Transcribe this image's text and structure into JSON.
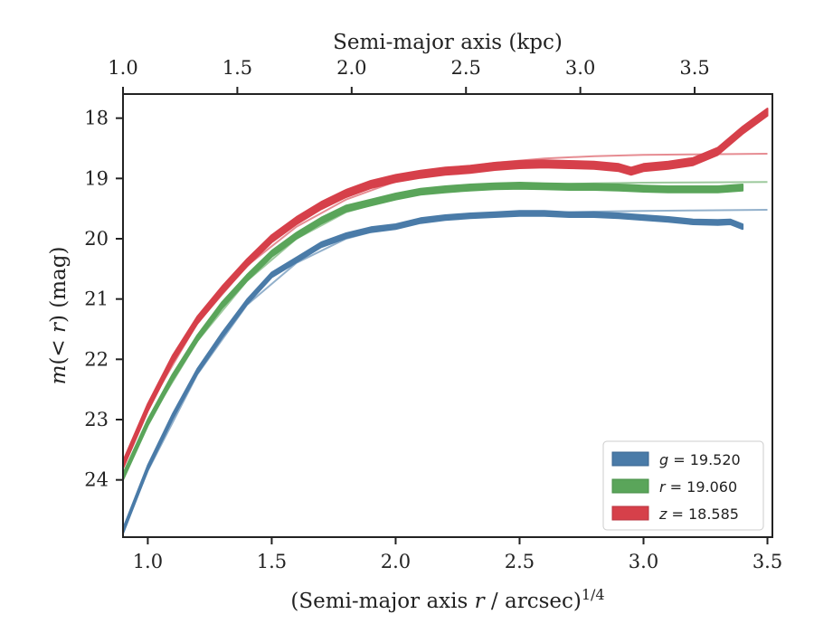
{
  "chart_data": {
    "type": "line",
    "xlabel": "(Semi-major axis r / arcsec)^{1/4}",
    "xlabel_parts": {
      "prefix": "(Semi-major axis ",
      "var": "r",
      "mid": " / arcsec)",
      "sup": "1/4"
    },
    "ylabel": "m(< r) (mag)",
    "ylabel_parts": {
      "var": "m",
      "mid": "(< ",
      "var2": "r",
      "end": ") (mag)"
    },
    "top_xlabel": "Semi-major axis (kpc)",
    "xlim": [
      0.9,
      3.52
    ],
    "ylim": [
      24.95,
      17.6
    ],
    "y_inverted": true,
    "x_ticks": [
      1.0,
      1.5,
      2.0,
      2.5,
      3.0,
      3.5
    ],
    "x_tick_labels": [
      "1.0",
      "1.5",
      "2.0",
      "2.5",
      "3.0",
      "3.5"
    ],
    "y_ticks": [
      18,
      19,
      20,
      21,
      22,
      23,
      24
    ],
    "y_tick_labels": [
      "18",
      "19",
      "20",
      "21",
      "22",
      "23",
      "24"
    ],
    "top_ticks_kpc": [
      1.0,
      1.5,
      2.0,
      2.5,
      3.0,
      3.5
    ],
    "top_tick_labels": [
      "1.0",
      "1.5",
      "2.0",
      "2.5",
      "3.0",
      "3.5"
    ],
    "top_xlim_kpc": [
      1.0,
      3.84
    ],
    "grid": false,
    "legend_position": "lower-right",
    "series": [
      {
        "name": "g = 19.520",
        "legend_var": "g",
        "legend_value": "19.520",
        "color": "#4a7ba8",
        "band_halfwidth": 0.04,
        "x": [
          0.9,
          1.0,
          1.1,
          1.2,
          1.3,
          1.4,
          1.5,
          1.6,
          1.7,
          1.8,
          1.9,
          2.0,
          2.1,
          2.2,
          2.3,
          2.4,
          2.5,
          2.6,
          2.7,
          2.8,
          2.9,
          3.0,
          3.1,
          3.2,
          3.3,
          3.35,
          3.4
        ],
        "y": [
          24.85,
          23.8,
          22.95,
          22.2,
          21.6,
          21.05,
          20.6,
          20.35,
          20.1,
          19.95,
          19.85,
          19.8,
          19.7,
          19.65,
          19.62,
          19.6,
          19.58,
          19.58,
          19.6,
          19.6,
          19.62,
          19.65,
          19.68,
          19.72,
          19.73,
          19.72,
          19.8
        ],
        "model_x": [
          0.9,
          1.0,
          1.2,
          1.4,
          1.6,
          1.8,
          2.0,
          2.2,
          2.4,
          2.6,
          2.8,
          3.0,
          3.2,
          3.5
        ],
        "model_y": [
          24.85,
          23.85,
          22.25,
          21.1,
          20.4,
          20.0,
          19.78,
          19.66,
          19.6,
          19.57,
          19.55,
          19.54,
          19.53,
          19.52
        ]
      },
      {
        "name": "r = 19.060",
        "legend_var": "r",
        "legend_value": "19.060",
        "color": "#5aa55a",
        "band_halfwidth": 0.05,
        "x": [
          0.9,
          1.0,
          1.1,
          1.2,
          1.3,
          1.4,
          1.5,
          1.6,
          1.7,
          1.8,
          1.9,
          2.0,
          2.1,
          2.2,
          2.3,
          2.4,
          2.5,
          2.6,
          2.7,
          2.8,
          2.9,
          3.0,
          3.1,
          3.2,
          3.3,
          3.4
        ],
        "y": [
          23.95,
          23.05,
          22.3,
          21.65,
          21.1,
          20.65,
          20.25,
          19.95,
          19.7,
          19.5,
          19.4,
          19.3,
          19.22,
          19.18,
          19.15,
          19.13,
          19.12,
          19.13,
          19.14,
          19.14,
          19.15,
          19.17,
          19.18,
          19.18,
          19.18,
          19.15
        ],
        "model_x": [
          0.9,
          1.0,
          1.2,
          1.4,
          1.6,
          1.8,
          2.0,
          2.2,
          2.4,
          2.6,
          2.8,
          3.0,
          3.2,
          3.5
        ],
        "model_y": [
          23.95,
          23.05,
          21.7,
          20.7,
          20.0,
          19.56,
          19.33,
          19.2,
          19.13,
          19.1,
          19.08,
          19.07,
          19.065,
          19.06
        ]
      },
      {
        "name": "z = 18.585",
        "legend_var": "z",
        "legend_value": "18.585",
        "color": "#d6404a",
        "band_halfwidth": 0.06,
        "x": [
          0.9,
          1.0,
          1.1,
          1.2,
          1.3,
          1.4,
          1.5,
          1.6,
          1.7,
          1.8,
          1.9,
          2.0,
          2.1,
          2.2,
          2.3,
          2.4,
          2.5,
          2.6,
          2.7,
          2.8,
          2.9,
          2.95,
          3.0,
          3.1,
          3.2,
          3.3,
          3.4,
          3.5
        ],
        "y": [
          23.75,
          22.8,
          22.0,
          21.35,
          20.85,
          20.4,
          20.0,
          19.7,
          19.45,
          19.25,
          19.1,
          19.0,
          18.93,
          18.88,
          18.85,
          18.8,
          18.77,
          18.76,
          18.77,
          18.78,
          18.82,
          18.88,
          18.82,
          18.78,
          18.72,
          18.55,
          18.2,
          17.9
        ],
        "model_x": [
          0.9,
          1.0,
          1.2,
          1.4,
          1.6,
          1.8,
          2.0,
          2.2,
          2.4,
          2.6,
          2.8,
          3.0,
          3.2,
          3.5
        ],
        "model_y": [
          23.75,
          22.8,
          21.4,
          20.45,
          19.8,
          19.35,
          19.05,
          18.85,
          18.74,
          18.67,
          18.63,
          18.61,
          18.6,
          18.59
        ]
      }
    ]
  }
}
